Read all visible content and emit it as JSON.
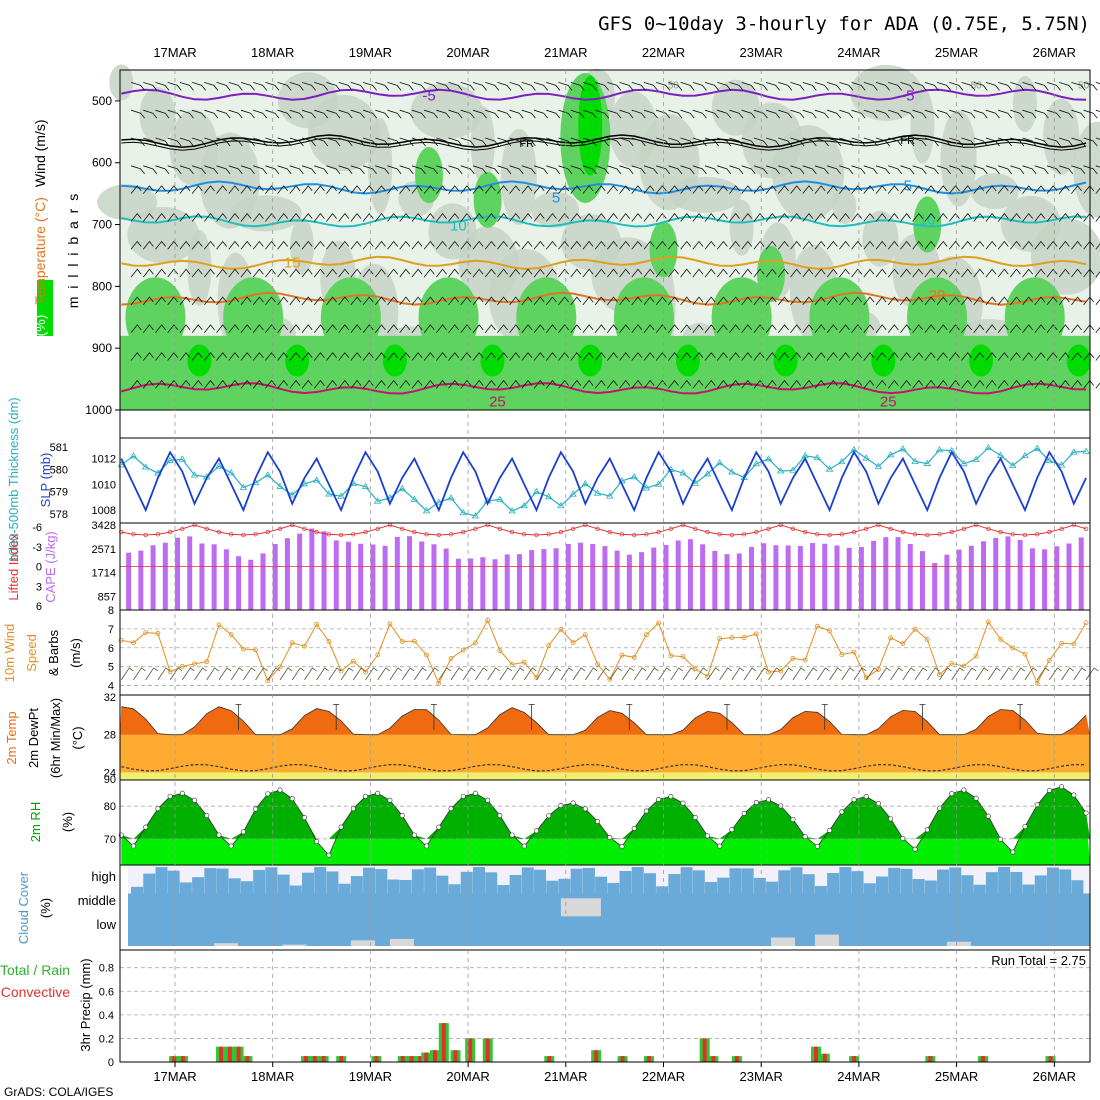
{
  "title": "GFS 0~10day 3-hourly for ADA (0.75E, 5.75N)",
  "credit": "GrADS: COLA/IGES",
  "date_labels": [
    "17MAR",
    "18MAR",
    "19MAR",
    "20MAR",
    "21MAR",
    "22MAR",
    "23MAR",
    "24MAR",
    "25MAR",
    "26MAR"
  ],
  "colors": {
    "rh_dark": "#00dc00",
    "rh_mid": "#5fd35f",
    "rh_light": "#c5d4c5",
    "rh_lightest": "#e8f2e8",
    "temp_m5": "#7f1fbf",
    "temp_fr": "#000000",
    "temp_5": "#1f8fdf",
    "temp_10": "#1fbfbf",
    "temp_15": "#df9f1f",
    "temp_20": "#e0741f",
    "temp_25": "#c8106e",
    "slp": "#1a3fd0",
    "thickness": "#28b0c0",
    "cape": "#bd6bf0",
    "lifted_index": "#e03030",
    "wind10m": "#e09020",
    "tmax_fill": "#f06a10",
    "tmid_fill": "#ffaa30",
    "tlow_fill": "#f0f070",
    "rh2m_dark": "#00b000",
    "rh2m_light": "#00ee00",
    "cloud": "#6aaad8",
    "precip_total": "#30c830",
    "precip_conv": "#e03030"
  },
  "chart_data": [
    {
      "panel": "upper-air",
      "type": "contour",
      "ylabel": "m i l l i b a r s",
      "side_labels": [
        "RH (%)",
        "Temperature (°C)",
        "Wind (m/s)"
      ],
      "yticks": [
        500,
        600,
        700,
        800,
        900,
        1000
      ],
      "ylim": [
        1000,
        450
      ],
      "isotherm_labels": [
        {
          "label": "-5",
          "level": 490,
          "day": 2.6
        },
        {
          "label": "-5",
          "level": 490,
          "day": 7.5
        },
        {
          "label": "FR",
          "level": 565,
          "day": 3.6
        },
        {
          "label": "FR",
          "level": 560,
          "day": 7.5
        },
        {
          "label": "5",
          "level": 655,
          "day": 3.9
        },
        {
          "label": "5",
          "level": 635,
          "day": 7.5
        },
        {
          "label": "10",
          "level": 700,
          "day": 2.9
        },
        {
          "label": "10",
          "level": 690,
          "day": 7.7
        },
        {
          "label": "15",
          "level": 760,
          "day": 1.2
        },
        {
          "label": "20",
          "level": 812,
          "day": 7.8
        },
        {
          "label": "25",
          "level": 985,
          "day": 3.3
        },
        {
          "label": "25",
          "level": 985,
          "day": 7.3
        }
      ],
      "rh_labels": [
        {
          "label": "50",
          "day": 5.1
        },
        {
          "label": "50",
          "day": 8.2
        },
        {
          "label": "50",
          "day": 9.3
        }
      ]
    },
    {
      "panel": "slp-thickness",
      "type": "line",
      "ylabel_left": "1000-500mb Thickness (dm)",
      "ylabel_right": "SLP (mb)",
      "thickness_ticks": [
        578,
        579,
        580,
        581
      ],
      "slp_ticks": [
        1008,
        1010,
        1012
      ],
      "slp_range": [
        1007,
        1013.6
      ],
      "thickness_range": [
        577.6,
        581.4
      ],
      "slp_daily_pattern": [
        1012,
        1010,
        1008,
        1010.5,
        1012.5,
        1011,
        1008.5,
        1010.5
      ],
      "thickness_trend": {
        "days": [
          0,
          1,
          2,
          3,
          4,
          5,
          6,
          7,
          8,
          9.6
        ],
        "values": [
          580.2,
          579.3,
          579.0,
          578.2,
          578.8,
          579.6,
          580.1,
          580.5,
          580.6,
          580.5
        ]
      }
    },
    {
      "panel": "cape-li",
      "type": "bar",
      "ylabel_left": "Lifted Index",
      "ylabel_right": "CAPE (J/kg)",
      "li_ticks": [
        "-6",
        "-3",
        "0",
        "3",
        "6"
      ],
      "cape_ticks": [
        "3428",
        "2571",
        "1714",
        "857"
      ],
      "cape_range": [
        0,
        3428
      ],
      "cape_values": [
        2260,
        2340,
        2550,
        2650,
        2850,
        2900,
        2620,
        2590,
        2390,
        2120,
        1980,
        2230,
        2600,
        2830,
        3010,
        3210,
        3100,
        2740,
        2690,
        2610,
        2580,
        2530,
        2880,
        2910,
        2700,
        2590,
        2420,
        2020,
        2030,
        2080,
        2000,
        2190,
        2200,
        2360,
        2400,
        2430,
        2600,
        2650,
        2600,
        2520,
        2340,
        2180,
        2280,
        2460,
        2560,
        2740,
        2790,
        2590,
        2330,
        2200,
        2230,
        2480,
        2630,
        2550,
        2540,
        2520,
        2640,
        2610,
        2540,
        2450,
        2480,
        2720,
        2870,
        2870,
        2600,
        2320,
        1850,
        2180,
        2380,
        2530,
        2710,
        2840,
        2900,
        2760,
        2430,
        2390,
        2510,
        2620,
        2860,
        2620,
        2600,
        2650
      ]
    },
    {
      "panel": "wind10m",
      "type": "line",
      "ylabel": "10m Wind Speed (m/s) & Barbs",
      "yticks": [
        4,
        5,
        6,
        7,
        8
      ],
      "ylim": [
        3.5,
        8
      ]
    },
    {
      "panel": "temp2m",
      "type": "area",
      "ylabel": "2m Temp 2m DewPt (6hr Min/Max) (°C)",
      "yticks": [
        24,
        28,
        32
      ],
      "tick_90": "90",
      "ylim": [
        23.2,
        32.2
      ],
      "tmax_daily": [
        31.0,
        30.8,
        30.7,
        30.9,
        30.6,
        30.5,
        30.5,
        30.6,
        30.7,
        30.8
      ],
      "tmin_daily": [
        27.2,
        27.0,
        27.2,
        27.1,
        26.9,
        27.0,
        27.1,
        27.2,
        27.0,
        27.3
      ],
      "dewpoint_mean": 24.5
    },
    {
      "panel": "rh2m",
      "type": "area",
      "ylabel": "2m RH (%)",
      "yticks": [
        70,
        80
      ],
      "ylim": [
        62,
        88
      ],
      "rh_max_daily": [
        84,
        85,
        84,
        84,
        81,
        83,
        82,
        83,
        85,
        86
      ],
      "rh_min_daily": [
        67,
        64,
        67,
        67,
        67,
        67,
        67,
        66,
        65,
        66
      ]
    },
    {
      "panel": "cloud-cover",
      "type": "area",
      "ylabel": "Cloud Cover (%)",
      "levels": [
        "high",
        "middle",
        "low"
      ]
    },
    {
      "panel": "precip",
      "type": "bar",
      "ylabel": "3hr Precip (mm)",
      "side_labels": [
        "Total / Rain",
        "Convective"
      ],
      "yticks": [
        0,
        0.2,
        0.4,
        0.6,
        0.8
      ],
      "ylim": [
        0,
        0.95
      ],
      "run_total_label": "Run Total = 2.75",
      "series": [
        {
          "name": "Total / Rain",
          "values": [
            {
              "day": -0.1,
              "v": 0.05
            },
            {
              "day": 0.05,
              "v": 0.05
            },
            {
              "day": 0.7,
              "v": 0.13
            },
            {
              "day": 0.85,
              "v": 0.13
            },
            {
              "day": 1.0,
              "v": 0.13
            },
            {
              "day": 1.15,
              "v": 0.05
            },
            {
              "day": 2.15,
              "v": 0.05
            },
            {
              "day": 2.3,
              "v": 0.05
            },
            {
              "day": 2.45,
              "v": 0.05
            },
            {
              "day": 2.75,
              "v": 0.05
            },
            {
              "day": 3.35,
              "v": 0.05
            },
            {
              "day": 3.8,
              "v": 0.05
            },
            {
              "day": 3.95,
              "v": 0.05
            },
            {
              "day": 4.1,
              "v": 0.05
            },
            {
              "day": 4.2,
              "v": 0.08
            },
            {
              "day": 4.35,
              "v": 0.1
            },
            {
              "day": 4.5,
              "v": 0.33
            },
            {
              "day": 4.7,
              "v": 0.1
            },
            {
              "day": 4.95,
              "v": 0.2
            },
            {
              "day": 5.25,
              "v": 0.2
            },
            {
              "day": 6.3,
              "v": 0.05
            },
            {
              "day": 7.1,
              "v": 0.1
            },
            {
              "day": 7.55,
              "v": 0.05
            },
            {
              "day": 8.0,
              "v": 0.05
            },
            {
              "day": 8.95,
              "v": 0.2
            },
            {
              "day": 9.1,
              "v": 0.05
            },
            {
              "day": 9.5,
              "v": 0.05
            },
            {
              "day": 10.85,
              "v": 0.13
            },
            {
              "day": 11.0,
              "v": 0.07
            },
            {
              "day": 11.5,
              "v": 0.05
            },
            {
              "day": 12.8,
              "v": 0.05
            },
            {
              "day": 13.7,
              "v": 0.05
            },
            {
              "day": 14.85,
              "v": 0.05
            },
            {
              "day": 15.65,
              "v": 0.05
            }
          ]
        }
      ]
    }
  ]
}
